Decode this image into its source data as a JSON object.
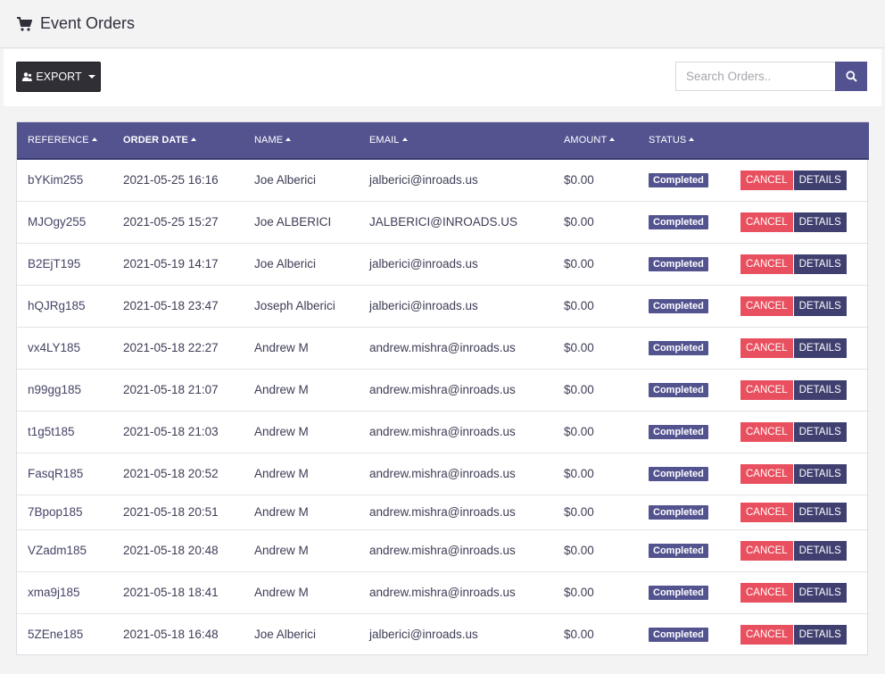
{
  "header": {
    "title": "Event Orders",
    "icon": "cart-icon"
  },
  "toolbar": {
    "export_label": "EXPORT",
    "search_placeholder": "Search Orders..",
    "search_value": ""
  },
  "table": {
    "columns": [
      "REFERENCE",
      "ORDER DATE",
      "NAME",
      "EMAIL",
      "AMOUNT",
      "STATUS"
    ],
    "cancel_label": "CANCEL",
    "details_label": "DETAILS",
    "rows": [
      {
        "reference": "bYKim255",
        "order_date": "2021-05-25 16:16",
        "name": "Joe Alberici",
        "email": "jalberici@inroads.us",
        "amount": "$0.00",
        "status": "Completed"
      },
      {
        "reference": "MJOgy255",
        "order_date": "2021-05-25 15:27",
        "name": "Joe ALBERICI",
        "email": "JALBERICI@INROADS.US",
        "amount": "$0.00",
        "status": "Completed"
      },
      {
        "reference": "B2EjT195",
        "order_date": "2021-05-19 14:17",
        "name": "Joe Alberici",
        "email": "jalberici@inroads.us",
        "amount": "$0.00",
        "status": "Completed"
      },
      {
        "reference": "hQJRg185",
        "order_date": "2021-05-18 23:47",
        "name": "Joseph Alberici",
        "email": "jalberici@inroads.us",
        "amount": "$0.00",
        "status": "Completed"
      },
      {
        "reference": "vx4LY185",
        "order_date": "2021-05-18 22:27",
        "name": "Andrew M",
        "email": "andrew.mishra@inroads.us",
        "amount": "$0.00",
        "status": "Completed"
      },
      {
        "reference": "n99gg185",
        "order_date": "2021-05-18 21:07",
        "name": "Andrew M",
        "email": "andrew.mishra@inroads.us",
        "amount": "$0.00",
        "status": "Completed"
      },
      {
        "reference": "t1g5t185",
        "order_date": "2021-05-18 21:03",
        "name": "Andrew M",
        "email": "andrew.mishra@inroads.us",
        "amount": "$0.00",
        "status": "Completed"
      },
      {
        "reference": "FasqR185",
        "order_date": "2021-05-18 20:52",
        "name": "Andrew M",
        "email": "andrew.mishra@inroads.us",
        "amount": "$0.00",
        "status": "Completed"
      },
      {
        "reference": "7Bpop185",
        "order_date": "2021-05-18 20:51",
        "name": "Andrew M",
        "email": "andrew.mishra@inroads.us",
        "amount": "$0.00",
        "status": "Completed"
      },
      {
        "reference": "VZadm185",
        "order_date": "2021-05-18 20:48",
        "name": "Andrew M",
        "email": "andrew.mishra@inroads.us",
        "amount": "$0.00",
        "status": "Completed"
      },
      {
        "reference": "xma9j185",
        "order_date": "2021-05-18 18:41",
        "name": "Andrew M",
        "email": "andrew.mishra@inroads.us",
        "amount": "$0.00",
        "status": "Completed"
      },
      {
        "reference": "5ZEne185",
        "order_date": "2021-05-18 16:48",
        "name": "Joe Alberici",
        "email": "jalberici@inroads.us",
        "amount": "$0.00",
        "status": "Completed"
      }
    ]
  },
  "colors": {
    "header_bg": "#52538f",
    "badge_bg": "#52538f",
    "cancel_bg": "#e9505f",
    "details_bg": "#3f4070",
    "export_bg": "#2f2f35"
  }
}
